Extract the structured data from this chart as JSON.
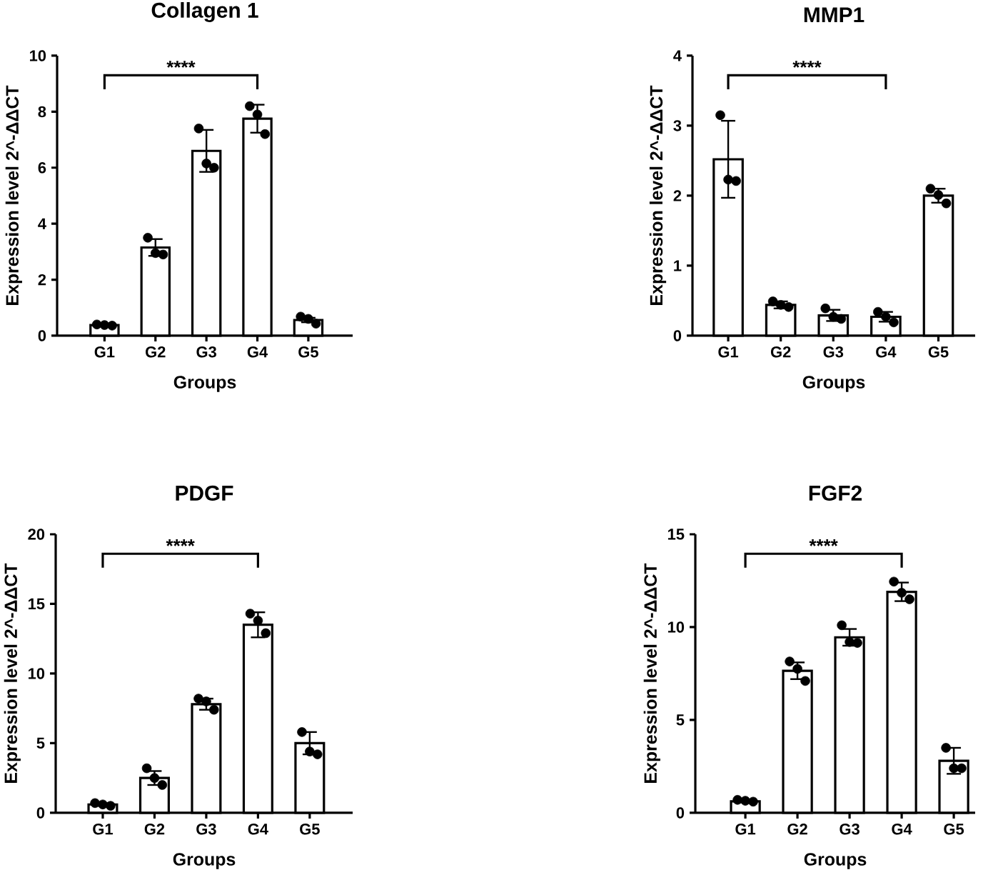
{
  "chart_data": [
    {
      "type": "bar",
      "title": "Collagen 1",
      "xlabel": "Groups",
      "ylabel": "Expression level 2^-ΔΔCT",
      "categories": [
        "G1",
        "G2",
        "G3",
        "G4",
        "G5"
      ],
      "ylim": [
        0,
        10
      ],
      "yticks": [
        0,
        2,
        4,
        6,
        8,
        10
      ],
      "annotations": [
        "****"
      ],
      "series": [
        {
          "type": "bar",
          "color": "#ffffff",
          "values": [
            0.38,
            3.15,
            6.6,
            7.75,
            0.56
          ],
          "errors": [
            0.05,
            0.3,
            0.75,
            0.5,
            0.08
          ]
        },
        {
          "type": "scatter",
          "color": "#000000",
          "x": [
            "G1",
            "G1",
            "G1",
            "G2",
            "G2",
            "G2",
            "G3",
            "G3",
            "G3",
            "G4",
            "G4",
            "G4",
            "G5",
            "G5",
            "G5"
          ],
          "values": [
            0.4,
            0.38,
            0.36,
            3.5,
            2.95,
            2.9,
            7.4,
            6.15,
            6.0,
            8.2,
            7.9,
            7.2,
            0.68,
            0.6,
            0.43
          ]
        }
      ]
    },
    {
      "type": "bar",
      "title": "MMP1",
      "xlabel": "Groups",
      "ylabel": "Expression level 2^-ΔΔCT",
      "categories": [
        "G1",
        "G2",
        "G3",
        "G4",
        "G5"
      ],
      "ylim": [
        0,
        4
      ],
      "yticks": [
        0,
        1,
        2,
        3,
        4
      ],
      "annotations": [
        "****"
      ],
      "series": [
        {
          "type": "bar",
          "color": "#ffffff",
          "values": [
            2.52,
            0.44,
            0.29,
            0.27,
            2.0
          ],
          "errors": [
            0.55,
            0.05,
            0.08,
            0.07,
            0.1
          ]
        },
        {
          "type": "scatter",
          "color": "#000000",
          "x": [
            "G1",
            "G1",
            "G1",
            "G2",
            "G2",
            "G2",
            "G3",
            "G3",
            "G3",
            "G4",
            "G4",
            "G4",
            "G5",
            "G5",
            "G5"
          ],
          "values": [
            3.15,
            2.23,
            2.21,
            0.49,
            0.44,
            0.41,
            0.39,
            0.27,
            0.24,
            0.34,
            0.27,
            0.19,
            2.1,
            2.01,
            1.89
          ]
        }
      ]
    },
    {
      "type": "bar",
      "title": "PDGF",
      "xlabel": "Groups",
      "ylabel": "Expression level 2^-ΔΔCT",
      "categories": [
        "G1",
        "G2",
        "G3",
        "G4",
        "G5"
      ],
      "ylim": [
        0,
        20
      ],
      "yticks": [
        0,
        5,
        10,
        15,
        20
      ],
      "annotations": [
        "****"
      ],
      "series": [
        {
          "type": "bar",
          "color": "#ffffff",
          "values": [
            0.6,
            2.5,
            7.8,
            13.5,
            5.0
          ],
          "errors": [
            0.1,
            0.5,
            0.4,
            0.9,
            0.8
          ]
        },
        {
          "type": "scatter",
          "color": "#000000",
          "x": [
            "G1",
            "G1",
            "G1",
            "G2",
            "G2",
            "G2",
            "G3",
            "G3",
            "G3",
            "G4",
            "G4",
            "G4",
            "G5",
            "G5",
            "G5"
          ],
          "values": [
            0.7,
            0.6,
            0.5,
            3.2,
            2.5,
            2.0,
            8.2,
            8.0,
            7.4,
            14.3,
            13.8,
            12.9,
            5.8,
            4.4,
            4.2
          ]
        }
      ]
    },
    {
      "type": "bar",
      "title": "FGF2",
      "xlabel": "Groups",
      "ylabel": "Expression level 2^-ΔΔCT",
      "categories": [
        "G1",
        "G2",
        "G3",
        "G4",
        "G5"
      ],
      "ylim": [
        0,
        15
      ],
      "yticks": [
        0,
        5,
        10,
        15
      ],
      "annotations": [
        "****"
      ],
      "series": [
        {
          "type": "bar",
          "color": "#ffffff",
          "values": [
            0.62,
            7.65,
            9.45,
            11.9,
            2.8
          ],
          "errors": [
            0.06,
            0.45,
            0.45,
            0.5,
            0.7
          ]
        },
        {
          "type": "scatter",
          "color": "#000000",
          "x": [
            "G1",
            "G1",
            "G1",
            "G2",
            "G2",
            "G2",
            "G3",
            "G3",
            "G3",
            "G4",
            "G4",
            "G4",
            "G5",
            "G5",
            "G5"
          ],
          "values": [
            0.7,
            0.65,
            0.6,
            8.15,
            7.75,
            7.1,
            10.1,
            9.2,
            9.15,
            12.45,
            11.85,
            11.5,
            3.5,
            2.4,
            2.4
          ]
        }
      ]
    }
  ]
}
